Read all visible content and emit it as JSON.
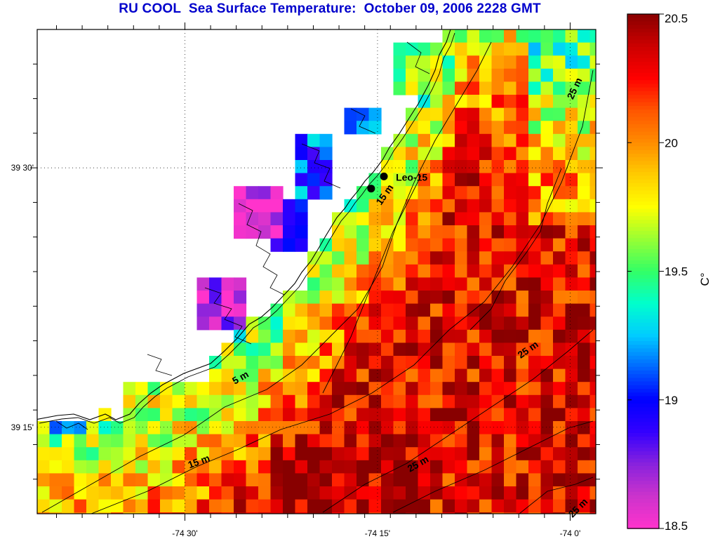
{
  "title": "RU COOL  Sea Surface Temperature:  October 09, 2006 2228 GMT",
  "map": {
    "lon_range": [
      -74.6917,
      -73.9667
    ],
    "lat_range": [
      39.1667,
      39.6333
    ],
    "lon_ticks": [
      {
        "value": -74.5,
        "label": "-74 30'"
      },
      {
        "value": -74.25,
        "label": "-74 15'"
      },
      {
        "value": -74.0,
        "label": "-74 0'"
      }
    ],
    "lat_ticks": [
      {
        "value": 39.5,
        "label": "39 30'"
      },
      {
        "value": 39.25,
        "label": "39 15'"
      }
    ],
    "grid": true,
    "missing_color": "#ffffff",
    "coastline_color": "#000000"
  },
  "stations": [
    {
      "name": "Leo-15",
      "lon": -74.2417,
      "lat": 39.4917,
      "label": "Leo-15"
    },
    {
      "name": "",
      "lon": -74.2583,
      "lat": 39.48
    }
  ],
  "isobath_labels": [
    {
      "text": "5 m"
    },
    {
      "text": "15 m"
    },
    {
      "text": "15 m"
    },
    {
      "text": "25 m"
    },
    {
      "text": "25 m"
    },
    {
      "text": "25 m"
    },
    {
      "text": "25 m"
    }
  ],
  "colorbar": {
    "min": 18.5,
    "max": 20.5,
    "tick_values": [
      18.5,
      19,
      19.5,
      20,
      20.5
    ],
    "tick_labels": [
      "18.5",
      "19",
      "19.5",
      "20",
      "20.5"
    ],
    "unit_label": "C°",
    "colors": [
      "#ff33cc",
      "#cc33cc",
      "#8822dd",
      "#3300ff",
      "#0000ff",
      "#0066ff",
      "#00ccff",
      "#00ffcc",
      "#33ff66",
      "#99ff33",
      "#ffff00",
      "#ffcc00",
      "#ff8c00",
      "#ff5500",
      "#ff0000",
      "#cc0000",
      "#880000"
    ]
  }
}
